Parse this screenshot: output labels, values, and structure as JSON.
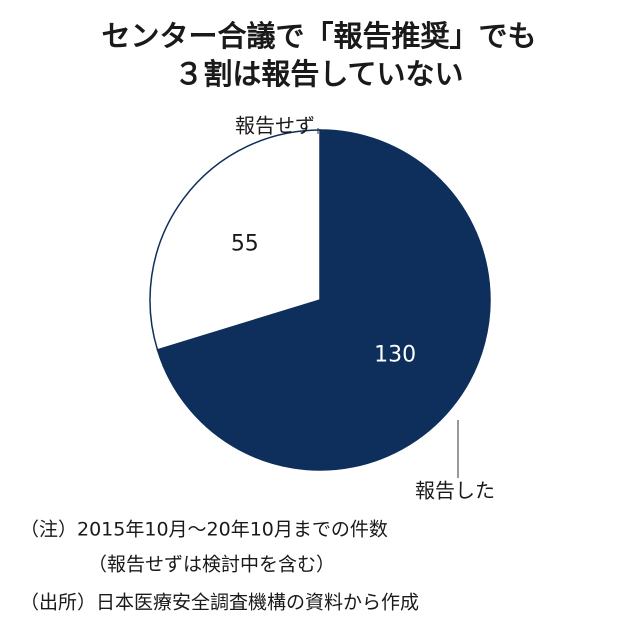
{
  "chart_data": {
    "type": "pie",
    "title": [
      "センター合議で「報告推奨」でも",
      "３割は報告していない"
    ],
    "categories": [
      "報告した",
      "報告せず"
    ],
    "values": [
      130,
      55
    ],
    "colors": [
      "#0e2f5c",
      "#ffffff"
    ],
    "notes": [
      "（注）2015年10月～20年10月までの件数",
      "（報告せずは検討中を含む）",
      "（出所）日本医療安全調査機構の資料から作成"
    ]
  }
}
